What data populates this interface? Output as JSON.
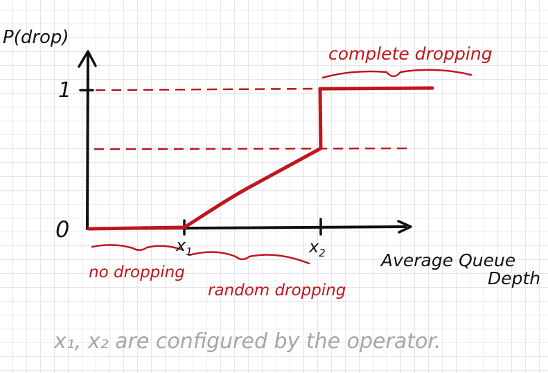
{
  "diagram": {
    "y_axis_label": "P(drop)",
    "x_axis_label_line1": "Average Queue",
    "x_axis_label_line2": "Depth",
    "tick_one": "1",
    "tick_zero": "0",
    "x1_label": "x",
    "x1_sub": "1",
    "x2_label": "x",
    "x2_sub": "2",
    "region_no_drop": "no dropping",
    "region_random": "random dropping",
    "region_complete": "complete dropping",
    "footnote": "x₁, x₂ are configured by the operator.",
    "colors": {
      "ink": "#111111",
      "red": "#c0161b",
      "grey": "#a6a6a6",
      "grid": "#e6e6e6"
    }
  }
}
